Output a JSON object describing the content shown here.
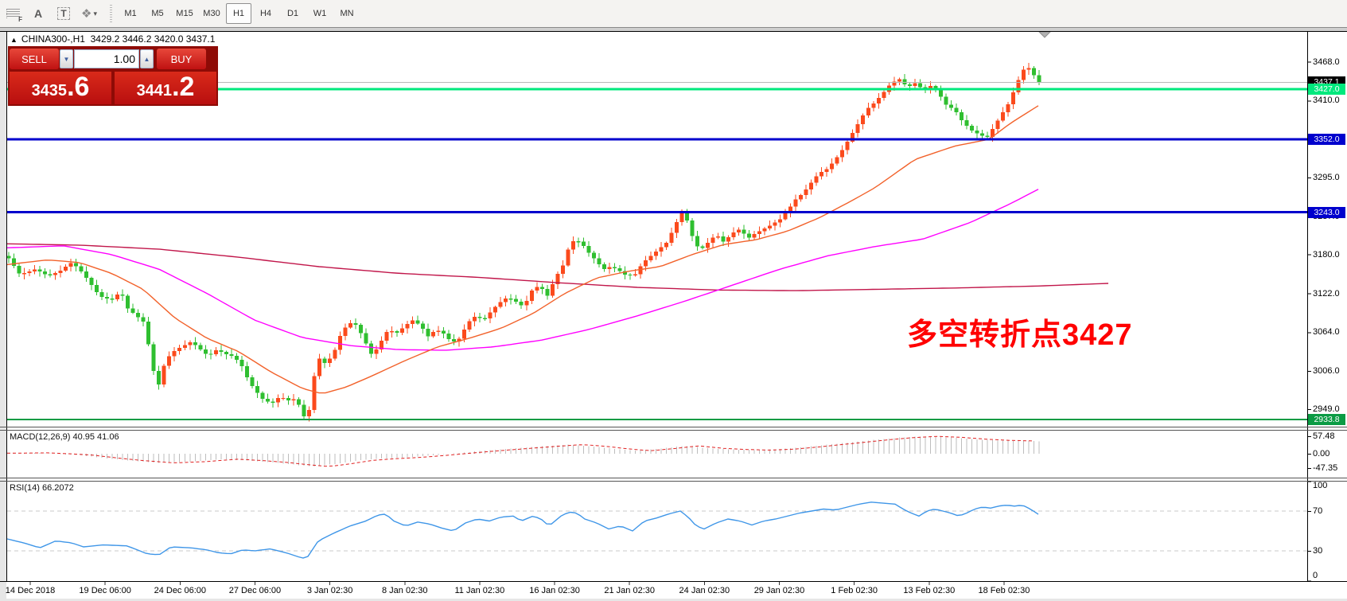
{
  "toolbar": {
    "icon_f": "F",
    "icon_a": "A",
    "icon_t": "T",
    "objects_glyph": "❖",
    "objects_caret": "▾",
    "timeframes": [
      "M1",
      "M5",
      "M15",
      "M30",
      "H1",
      "H4",
      "D1",
      "W1",
      "MN"
    ],
    "active_timeframe": "H1"
  },
  "chart": {
    "collapse_marker": "▲",
    "title": {
      "symbol": "CHINA300-,H1",
      "ohlc": "3429.2 3446.2 3420.0 3437.1"
    },
    "annotation": {
      "text": "多空转折点3427",
      "color": "#ff0000"
    },
    "price_axis": {
      "ticks": [
        3468.0,
        3410.0,
        3352.0,
        3295.0,
        3237.0,
        3180.0,
        3122.0,
        3064.0,
        3006.0,
        2949.0
      ],
      "badges": [
        {
          "label": "3437.1",
          "price": 3437.1,
          "bg": "#000000"
        },
        {
          "label": "3427.0",
          "price": 3427.0,
          "bg": "#00e97d"
        },
        {
          "label": "3352.0",
          "price": 3352.0,
          "bg": "#0000cd"
        },
        {
          "label": "3243.0",
          "price": 3243.0,
          "bg": "#0000cd"
        },
        {
          "label": "2933.8",
          "price": 2933.8,
          "bg": "#0b9b44"
        }
      ]
    },
    "time_axis": {
      "labels": [
        "14 Dec 2018",
        "19 Dec 06:00",
        "24 Dec 06:00",
        "27 Dec 06:00",
        "3 Jan 02:30",
        "8 Jan 02:30",
        "11 Jan 02:30",
        "16 Jan 02:30",
        "21 Jan 02:30",
        "24 Jan 02:30",
        "29 Jan 02:30",
        "1 Feb 02:30",
        "13 Feb 02:30",
        "18 Feb 02:30"
      ]
    },
    "hlines": [
      {
        "price": 3437.1,
        "color": "#b9b9b9",
        "w": 1,
        "name": "current-price-line"
      },
      {
        "price": 3427.0,
        "color": "#00e97d",
        "w": 3,
        "name": "green-pivot-line-3427"
      },
      {
        "price": 3352.0,
        "color": "#0000cd",
        "w": 3,
        "name": "blue-level-line-3352"
      },
      {
        "price": 3243.0,
        "color": "#0000cd",
        "w": 3,
        "name": "blue-level-line-3243"
      },
      {
        "price": 2933.8,
        "color": "#0b9b44",
        "w": 2,
        "name": "green-level-line-2933"
      }
    ]
  },
  "trade": {
    "sell_label": "SELL",
    "buy_label": "BUY",
    "volume": "1.00",
    "vol_down_glyph": "▼",
    "vol_up_glyph": "▲",
    "sell_price": {
      "main": "3435",
      "pip": ".6"
    },
    "buy_price": {
      "main": "3441",
      "pip": ".2"
    }
  },
  "indicators": {
    "macd": {
      "label": "MACD(12,26,9) 40.95 41.06",
      "axis": [
        57.48,
        0.0,
        -47.35
      ]
    },
    "rsi": {
      "label": "RSI(14) 66.2072",
      "axis": [
        100,
        70,
        30,
        0
      ],
      "dashed_levels": [
        70,
        30
      ]
    }
  },
  "chart_data": {
    "type": "candlestick",
    "symbol": "CHINA300-",
    "timeframe": "H1",
    "current_bar": {
      "open": 3429.2,
      "high": 3446.2,
      "low": 3420.0,
      "close": 3437.1
    },
    "bid": 3435.6,
    "ask": 3441.2,
    "price_range_visible": [
      2933.8,
      3468.0
    ],
    "price_close_anchors": [
      [
        9,
        3178
      ],
      [
        25,
        3150
      ],
      [
        45,
        3158
      ],
      [
        60,
        3148
      ],
      [
        75,
        3155
      ],
      [
        90,
        3168
      ],
      [
        100,
        3158
      ],
      [
        112,
        3140
      ],
      [
        125,
        3118
      ],
      [
        140,
        3112
      ],
      [
        152,
        3125
      ],
      [
        160,
        3100
      ],
      [
        172,
        3088
      ],
      [
        182,
        3078
      ],
      [
        192,
        3010
      ],
      [
        200,
        2985
      ],
      [
        208,
        3022
      ],
      [
        218,
        3035
      ],
      [
        228,
        3042
      ],
      [
        240,
        3050
      ],
      [
        252,
        3038
      ],
      [
        262,
        3028
      ],
      [
        272,
        3038
      ],
      [
        282,
        3032
      ],
      [
        292,
        3028
      ],
      [
        302,
        3018
      ],
      [
        312,
        2992
      ],
      [
        322,
        2975
      ],
      [
        332,
        2962
      ],
      [
        342,
        2958
      ],
      [
        352,
        2968
      ],
      [
        362,
        2962
      ],
      [
        372,
        2965
      ],
      [
        382,
        2938
      ],
      [
        390,
        2950
      ],
      [
        398,
        3028
      ],
      [
        408,
        3018
      ],
      [
        418,
        3028
      ],
      [
        428,
        3060
      ],
      [
        438,
        3078
      ],
      [
        448,
        3075
      ],
      [
        458,
        3052
      ],
      [
        468,
        3028
      ],
      [
        478,
        3048
      ],
      [
        488,
        3068
      ],
      [
        498,
        3062
      ],
      [
        508,
        3072
      ],
      [
        518,
        3082
      ],
      [
        528,
        3075
      ],
      [
        538,
        3058
      ],
      [
        548,
        3068
      ],
      [
        558,
        3062
      ],
      [
        568,
        3048
      ],
      [
        578,
        3055
      ],
      [
        588,
        3078
      ],
      [
        598,
        3088
      ],
      [
        608,
        3082
      ],
      [
        618,
        3096
      ],
      [
        628,
        3108
      ],
      [
        638,
        3116
      ],
      [
        648,
        3110
      ],
      [
        658,
        3102
      ],
      [
        668,
        3126
      ],
      [
        678,
        3134
      ],
      [
        688,
        3118
      ],
      [
        698,
        3146
      ],
      [
        708,
        3165
      ],
      [
        715,
        3192
      ],
      [
        722,
        3202
      ],
      [
        730,
        3198
      ],
      [
        738,
        3185
      ],
      [
        748,
        3172
      ],
      [
        758,
        3158
      ],
      [
        768,
        3162
      ],
      [
        778,
        3156
      ],
      [
        788,
        3148
      ],
      [
        798,
        3150
      ],
      [
        808,
        3168
      ],
      [
        818,
        3178
      ],
      [
        828,
        3188
      ],
      [
        838,
        3198
      ],
      [
        848,
        3222
      ],
      [
        856,
        3243
      ],
      [
        864,
        3230
      ],
      [
        872,
        3200
      ],
      [
        880,
        3186
      ],
      [
        890,
        3198
      ],
      [
        900,
        3210
      ],
      [
        910,
        3198
      ],
      [
        920,
        3212
      ],
      [
        930,
        3218
      ],
      [
        940,
        3204
      ],
      [
        950,
        3212
      ],
      [
        960,
        3218
      ],
      [
        970,
        3225
      ],
      [
        980,
        3232
      ],
      [
        990,
        3246
      ],
      [
        1000,
        3262
      ],
      [
        1010,
        3272
      ],
      [
        1020,
        3288
      ],
      [
        1030,
        3302
      ],
      [
        1040,
        3308
      ],
      [
        1050,
        3322
      ],
      [
        1060,
        3338
      ],
      [
        1070,
        3358
      ],
      [
        1080,
        3378
      ],
      [
        1090,
        3398
      ],
      [
        1100,
        3408
      ],
      [
        1110,
        3422
      ],
      [
        1120,
        3436
      ],
      [
        1130,
        3442
      ],
      [
        1140,
        3430
      ],
      [
        1150,
        3436
      ],
      [
        1160,
        3426
      ],
      [
        1170,
        3432
      ],
      [
        1180,
        3420
      ],
      [
        1190,
        3402
      ],
      [
        1200,
        3396
      ],
      [
        1210,
        3378
      ],
      [
        1220,
        3366
      ],
      [
        1230,
        3360
      ],
      [
        1240,
        3354
      ],
      [
        1250,
        3372
      ],
      [
        1258,
        3388
      ],
      [
        1266,
        3402
      ],
      [
        1274,
        3424
      ],
      [
        1282,
        3446
      ],
      [
        1290,
        3464
      ],
      [
        1298,
        3450
      ],
      [
        1306,
        3437
      ]
    ],
    "ma_fast_anchors": [
      [
        9,
        3165
      ],
      [
        60,
        3172
      ],
      [
        100,
        3168
      ],
      [
        140,
        3152
      ],
      [
        180,
        3128
      ],
      [
        220,
        3085
      ],
      [
        260,
        3055
      ],
      [
        300,
        3035
      ],
      [
        340,
        3005
      ],
      [
        380,
        2980
      ],
      [
        405,
        2972
      ],
      [
        435,
        2982
      ],
      [
        470,
        3000
      ],
      [
        510,
        3022
      ],
      [
        550,
        3042
      ],
      [
        590,
        3055
      ],
      [
        630,
        3070
      ],
      [
        670,
        3092
      ],
      [
        710,
        3122
      ],
      [
        750,
        3145
      ],
      [
        790,
        3155
      ],
      [
        830,
        3162
      ],
      [
        870,
        3180
      ],
      [
        910,
        3195
      ],
      [
        950,
        3202
      ],
      [
        990,
        3215
      ],
      [
        1030,
        3235
      ],
      [
        1070,
        3260
      ],
      [
        1100,
        3280
      ],
      [
        1150,
        3322
      ],
      [
        1200,
        3342
      ],
      [
        1243,
        3352
      ],
      [
        1270,
        3376
      ],
      [
        1306,
        3403
      ]
    ],
    "ma_mid_anchors": [
      [
        9,
        3190
      ],
      [
        80,
        3193
      ],
      [
        140,
        3180
      ],
      [
        200,
        3158
      ],
      [
        260,
        3122
      ],
      [
        320,
        3082
      ],
      [
        380,
        3056
      ],
      [
        440,
        3044
      ],
      [
        500,
        3038
      ],
      [
        560,
        3037
      ],
      [
        620,
        3042
      ],
      [
        680,
        3052
      ],
      [
        740,
        3068
      ],
      [
        800,
        3088
      ],
      [
        860,
        3110
      ],
      [
        920,
        3134
      ],
      [
        980,
        3158
      ],
      [
        1040,
        3178
      ],
      [
        1100,
        3192
      ],
      [
        1160,
        3203
      ],
      [
        1220,
        3228
      ],
      [
        1270,
        3256
      ],
      [
        1306,
        3278
      ]
    ],
    "ma_slow_anchors": [
      [
        9,
        3196
      ],
      [
        100,
        3194
      ],
      [
        200,
        3188
      ],
      [
        300,
        3176
      ],
      [
        400,
        3162
      ],
      [
        500,
        3152
      ],
      [
        600,
        3146
      ],
      [
        700,
        3138
      ],
      [
        800,
        3131
      ],
      [
        900,
        3127
      ],
      [
        1000,
        3126
      ],
      [
        1100,
        3128
      ],
      [
        1200,
        3130
      ],
      [
        1306,
        3133
      ],
      [
        1395,
        3137
      ]
    ],
    "macd_anchors": [
      [
        9,
        2
      ],
      [
        40,
        3
      ],
      [
        70,
        0
      ],
      [
        100,
        -5
      ],
      [
        130,
        -14
      ],
      [
        160,
        -22
      ],
      [
        200,
        -30
      ],
      [
        240,
        -26
      ],
      [
        280,
        -18
      ],
      [
        310,
        -22
      ],
      [
        340,
        -28
      ],
      [
        370,
        -36
      ],
      [
        395,
        -42
      ],
      [
        420,
        -34
      ],
      [
        450,
        -22
      ],
      [
        480,
        -16
      ],
      [
        510,
        -12
      ],
      [
        540,
        -6
      ],
      [
        565,
        0
      ],
      [
        600,
        8
      ],
      [
        640,
        16
      ],
      [
        680,
        24
      ],
      [
        715,
        30
      ],
      [
        745,
        24
      ],
      [
        775,
        15
      ],
      [
        800,
        10
      ],
      [
        830,
        17
      ],
      [
        860,
        26
      ],
      [
        890,
        18
      ],
      [
        920,
        14
      ],
      [
        950,
        12
      ],
      [
        980,
        15
      ],
      [
        1010,
        22
      ],
      [
        1040,
        30
      ],
      [
        1070,
        38
      ],
      [
        1100,
        46
      ],
      [
        1130,
        53
      ],
      [
        1160,
        57
      ],
      [
        1190,
        54
      ],
      [
        1220,
        48
      ],
      [
        1250,
        44
      ],
      [
        1280,
        42
      ],
      [
        1306,
        41
      ]
    ],
    "rsi_anchors": [
      [
        9,
        42
      ],
      [
        30,
        38
      ],
      [
        50,
        33
      ],
      [
        70,
        40
      ],
      [
        90,
        38
      ],
      [
        105,
        34
      ],
      [
        130,
        36
      ],
      [
        160,
        35
      ],
      [
        185,
        27
      ],
      [
        200,
        26
      ],
      [
        215,
        34
      ],
      [
        240,
        33
      ],
      [
        260,
        31
      ],
      [
        275,
        28
      ],
      [
        290,
        27
      ],
      [
        305,
        31
      ],
      [
        320,
        30
      ],
      [
        340,
        32
      ],
      [
        360,
        28
      ],
      [
        375,
        24
      ],
      [
        385,
        22
      ],
      [
        400,
        40
      ],
      [
        420,
        48
      ],
      [
        440,
        55
      ],
      [
        460,
        60
      ],
      [
        475,
        66
      ],
      [
        485,
        67
      ],
      [
        495,
        60
      ],
      [
        510,
        55
      ],
      [
        525,
        59
      ],
      [
        540,
        57
      ],
      [
        555,
        53
      ],
      [
        570,
        50
      ],
      [
        585,
        58
      ],
      [
        600,
        62
      ],
      [
        615,
        60
      ],
      [
        630,
        64
      ],
      [
        645,
        65
      ],
      [
        655,
        60
      ],
      [
        670,
        65
      ],
      [
        680,
        62
      ],
      [
        690,
        55
      ],
      [
        705,
        65
      ],
      [
        715,
        69
      ],
      [
        725,
        68
      ],
      [
        735,
        62
      ],
      [
        750,
        58
      ],
      [
        765,
        52
      ],
      [
        780,
        55
      ],
      [
        795,
        50
      ],
      [
        810,
        60
      ],
      [
        825,
        63
      ],
      [
        840,
        67
      ],
      [
        855,
        70
      ],
      [
        865,
        64
      ],
      [
        875,
        55
      ],
      [
        885,
        52
      ],
      [
        900,
        58
      ],
      [
        915,
        62
      ],
      [
        930,
        60
      ],
      [
        945,
        56
      ],
      [
        960,
        60
      ],
      [
        975,
        62
      ],
      [
        990,
        65
      ],
      [
        1005,
        68
      ],
      [
        1020,
        70
      ],
      [
        1035,
        72
      ],
      [
        1050,
        71
      ],
      [
        1065,
        74
      ],
      [
        1080,
        77
      ],
      [
        1095,
        79
      ],
      [
        1110,
        78
      ],
      [
        1125,
        77
      ],
      [
        1135,
        72
      ],
      [
        1145,
        68
      ],
      [
        1155,
        65
      ],
      [
        1165,
        70
      ],
      [
        1175,
        72
      ],
      [
        1185,
        70
      ],
      [
        1195,
        68
      ],
      [
        1205,
        65
      ],
      [
        1215,
        68
      ],
      [
        1225,
        72
      ],
      [
        1235,
        74
      ],
      [
        1245,
        73
      ],
      [
        1255,
        75
      ],
      [
        1265,
        76
      ],
      [
        1275,
        75
      ],
      [
        1285,
        76
      ],
      [
        1295,
        72
      ],
      [
        1306,
        66.2
      ]
    ],
    "colors": {
      "up": "#fb4a1c",
      "down": "#2fbf30",
      "ma_fast": "#f2622b",
      "ma_mid": "#ff00ff",
      "ma_slow": "#c1164a",
      "macd_hist": "#bdbdbd",
      "macd_signal": "#e02020",
      "rsi_line": "#3f96e8"
    }
  }
}
